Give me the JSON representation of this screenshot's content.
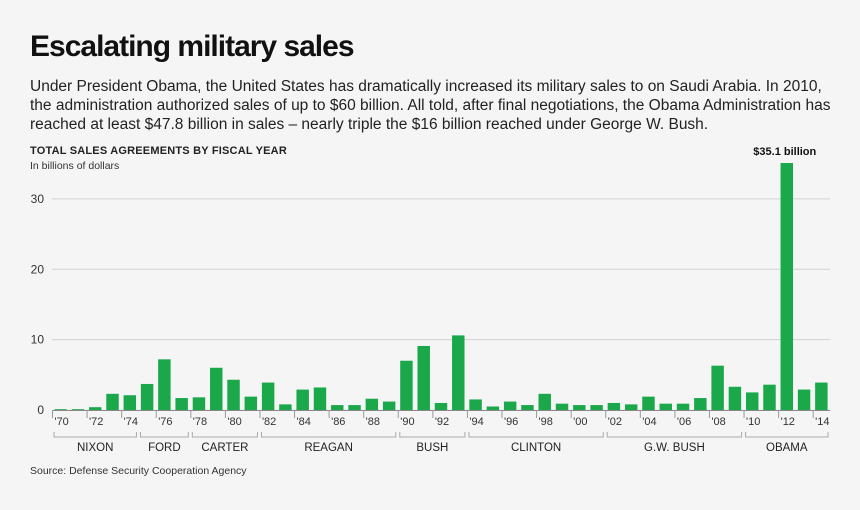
{
  "chart_data": {
    "type": "bar",
    "title": "Escalating military sales",
    "description": "Under President Obama, the United States has dramatically increased its military sales to on Saudi Arabia. In 2010, the administration authorized sales of up to $60 billion. All told, after final negotiations, the Obama Administration has reached at least $47.8 billion in sales – nearly triple the $16 billion reached under George W. Bush.",
    "subtitle": "TOTAL SALES AGREEMENTS BY FISCAL YEAR",
    "ylabel": "In billions of dollars",
    "source": "Source: Defense Security Cooperation Agency",
    "ylim": [
      0,
      35.1
    ],
    "yticks": [
      "0",
      "10",
      "20",
      "30"
    ],
    "grid": true,
    "bar_color": "#1aa84a",
    "x": [
      1970,
      1971,
      1972,
      1973,
      1974,
      1975,
      1976,
      1977,
      1978,
      1979,
      1980,
      1981,
      1982,
      1983,
      1984,
      1985,
      1986,
      1987,
      1988,
      1989,
      1990,
      1991,
      1992,
      1993,
      1994,
      1995,
      1996,
      1997,
      1998,
      1999,
      2000,
      2001,
      2002,
      2003,
      2004,
      2005,
      2006,
      2007,
      2008,
      2009,
      2010,
      2011,
      2012,
      2013,
      2014
    ],
    "xtick_labels": [
      "'70",
      "'72",
      "'74",
      "'76",
      "'78",
      "'80",
      "'82",
      "'84",
      "'86",
      "'88",
      "'90",
      "'92",
      "'94",
      "'96",
      "'98",
      "'00",
      "'02",
      "'04",
      "'06",
      "'08",
      "'10",
      "'12",
      "'14"
    ],
    "values": [
      0.1,
      0.1,
      0.4,
      2.3,
      2.1,
      3.7,
      7.2,
      1.7,
      1.8,
      6.0,
      4.3,
      1.9,
      3.9,
      0.8,
      2.9,
      3.2,
      0.7,
      0.7,
      1.6,
      1.2,
      7.0,
      9.1,
      1.0,
      10.6,
      1.5,
      0.5,
      1.2,
      0.7,
      2.3,
      0.9,
      0.7,
      0.7,
      1.0,
      0.8,
      1.9,
      0.9,
      0.9,
      1.7,
      6.3,
      3.3,
      2.5,
      3.6,
      35.1,
      2.9,
      3.9
    ],
    "annotations": [
      {
        "year": 2012,
        "text": "$35.1 billion"
      }
    ],
    "administrations": [
      {
        "name": "NIXON",
        "start": 1970,
        "end": 1974
      },
      {
        "name": "FORD",
        "start": 1975,
        "end": 1977
      },
      {
        "name": "CARTER",
        "start": 1978,
        "end": 1981
      },
      {
        "name": "REAGAN",
        "start": 1982,
        "end": 1989
      },
      {
        "name": "BUSH",
        "start": 1990,
        "end": 1993
      },
      {
        "name": "CLINTON",
        "start": 1994,
        "end": 2001
      },
      {
        "name": "G.W. BUSH",
        "start": 2002,
        "end": 2009
      },
      {
        "name": "OBAMA",
        "start": 2010,
        "end": 2014
      }
    ]
  }
}
